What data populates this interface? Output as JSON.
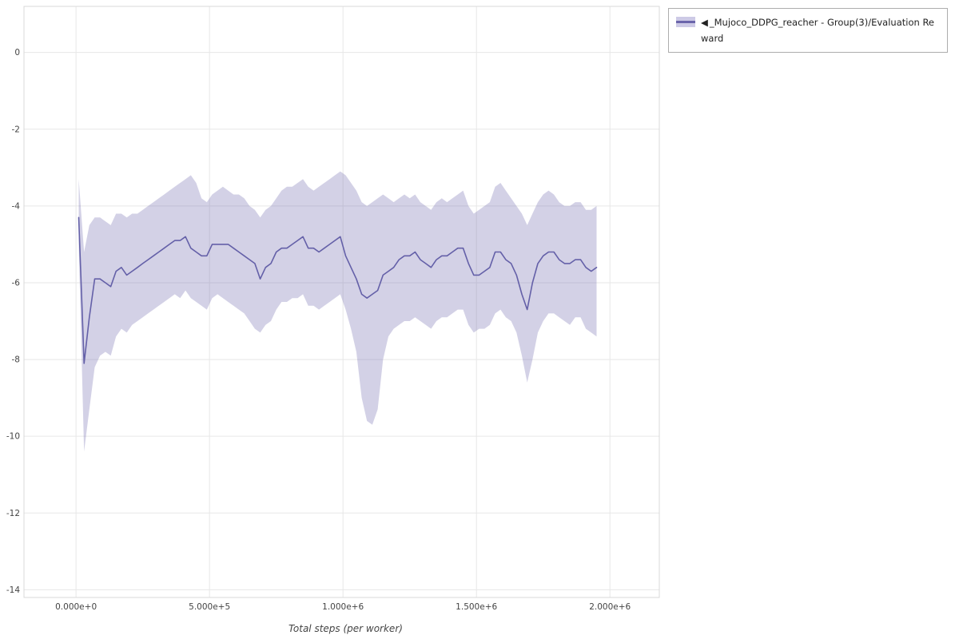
{
  "legend": {
    "collapse_icon": "◀",
    "series_label": "_Mujoco_DDPG_reacher - Group(3)/Evaluation Reward"
  },
  "colors": {
    "line": "#6460a8",
    "band": "#6c67ad",
    "band_opacity": 0.3,
    "grid": "#e7e7e7",
    "frame": "#d9d9d9",
    "tick_text": "#444444",
    "axis_label_text": "#444444"
  },
  "chart_data": {
    "type": "line",
    "title": "_Mujoco_DDPG_reacher - Group(3)/Evaluation Reward",
    "xlabel": "Total steps (per worker)",
    "ylabel": "",
    "grid": true,
    "legend_position": "top-right",
    "xlim": [
      -195000,
      2185000
    ],
    "ylim": [
      -14.2,
      1.2
    ],
    "x_ticks": {
      "values": [
        0,
        500000,
        1000000,
        1500000,
        2000000
      ],
      "labels": [
        "0.000e+0",
        "5.000e+5",
        "1.000e+6",
        "1.500e+6",
        "2.000e+6"
      ]
    },
    "y_ticks": {
      "values": [
        0,
        -2,
        -4,
        -6,
        -8,
        -10,
        -12,
        -14
      ],
      "labels": [
        "0",
        "-2",
        "-4",
        "-6",
        "-8",
        "-10",
        "-12",
        "-14"
      ]
    },
    "series": [
      {
        "name": "_Mujoco_DDPG_reacher - Group(3)/Evaluation Reward",
        "x": [
          10000,
          30000,
          50000,
          70000,
          90000,
          110000,
          130000,
          150000,
          170000,
          190000,
          210000,
          230000,
          250000,
          270000,
          290000,
          310000,
          330000,
          350000,
          370000,
          390000,
          410000,
          430000,
          450000,
          470000,
          490000,
          510000,
          530000,
          550000,
          570000,
          590000,
          610000,
          630000,
          650000,
          670000,
          690000,
          710000,
          730000,
          750000,
          770000,
          790000,
          810000,
          830000,
          850000,
          870000,
          890000,
          910000,
          930000,
          950000,
          970000,
          990000,
          1010000,
          1030000,
          1050000,
          1070000,
          1090000,
          1110000,
          1130000,
          1150000,
          1170000,
          1190000,
          1210000,
          1230000,
          1250000,
          1270000,
          1290000,
          1310000,
          1330000,
          1350000,
          1370000,
          1390000,
          1410000,
          1430000,
          1450000,
          1470000,
          1490000,
          1510000,
          1530000,
          1550000,
          1570000,
          1590000,
          1610000,
          1630000,
          1650000,
          1670000,
          1690000,
          1710000,
          1730000,
          1750000,
          1770000,
          1790000,
          1810000,
          1830000,
          1850000,
          1870000,
          1890000,
          1910000,
          1930000,
          1950000
        ],
        "mean": [
          -4.3,
          -8.1,
          -6.9,
          -5.9,
          -5.9,
          -6.0,
          -6.1,
          -5.7,
          -5.6,
          -5.8,
          -5.7,
          -5.6,
          -5.5,
          -5.4,
          -5.3,
          -5.2,
          -5.1,
          -5.0,
          -4.9,
          -4.9,
          -4.8,
          -5.1,
          -5.2,
          -5.3,
          -5.3,
          -5.0,
          -5.0,
          -5.0,
          -5.0,
          -5.1,
          -5.2,
          -5.3,
          -5.4,
          -5.5,
          -5.9,
          -5.6,
          -5.5,
          -5.2,
          -5.1,
          -5.1,
          -5.0,
          -4.9,
          -4.8,
          -5.1,
          -5.1,
          -5.2,
          -5.1,
          -5.0,
          -4.9,
          -4.8,
          -5.3,
          -5.6,
          -5.9,
          -6.3,
          -6.4,
          -6.3,
          -6.2,
          -5.8,
          -5.7,
          -5.6,
          -5.4,
          -5.3,
          -5.3,
          -5.2,
          -5.4,
          -5.5,
          -5.6,
          -5.4,
          -5.3,
          -5.3,
          -5.2,
          -5.1,
          -5.1,
          -5.5,
          -5.8,
          -5.8,
          -5.7,
          -5.6,
          -5.2,
          -5.2,
          -5.4,
          -5.5,
          -5.8,
          -6.3,
          -6.7,
          -6.0,
          -5.5,
          -5.3,
          -5.2,
          -5.2,
          -5.4,
          -5.5,
          -5.5,
          -5.4,
          -5.4,
          -5.6,
          -5.7,
          -5.6
        ],
        "upper": [
          -3.3,
          -5.2,
          -4.5,
          -4.3,
          -4.3,
          -4.4,
          -4.5,
          -4.2,
          -4.2,
          -4.3,
          -4.2,
          -4.2,
          -4.1,
          -4.0,
          -3.9,
          -3.8,
          -3.7,
          -3.6,
          -3.5,
          -3.4,
          -3.3,
          -3.2,
          -3.4,
          -3.8,
          -3.9,
          -3.7,
          -3.6,
          -3.5,
          -3.6,
          -3.7,
          -3.7,
          -3.8,
          -4.0,
          -4.1,
          -4.3,
          -4.1,
          -4.0,
          -3.8,
          -3.6,
          -3.5,
          -3.5,
          -3.4,
          -3.3,
          -3.5,
          -3.6,
          -3.5,
          -3.4,
          -3.3,
          -3.2,
          -3.1,
          -3.2,
          -3.4,
          -3.6,
          -3.9,
          -4.0,
          -3.9,
          -3.8,
          -3.7,
          -3.8,
          -3.9,
          -3.8,
          -3.7,
          -3.8,
          -3.7,
          -3.9,
          -4.0,
          -4.1,
          -3.9,
          -3.8,
          -3.9,
          -3.8,
          -3.7,
          -3.6,
          -4.0,
          -4.2,
          -4.1,
          -4.0,
          -3.9,
          -3.5,
          -3.4,
          -3.6,
          -3.8,
          -4.0,
          -4.2,
          -4.5,
          -4.2,
          -3.9,
          -3.7,
          -3.6,
          -3.7,
          -3.9,
          -4.0,
          -4.0,
          -3.9,
          -3.9,
          -4.1,
          -4.1,
          -4.0
        ],
        "lower": [
          -5.0,
          -10.4,
          -9.3,
          -8.2,
          -7.9,
          -7.8,
          -7.9,
          -7.4,
          -7.2,
          -7.3,
          -7.1,
          -7.0,
          -6.9,
          -6.8,
          -6.7,
          -6.6,
          -6.5,
          -6.4,
          -6.3,
          -6.4,
          -6.2,
          -6.4,
          -6.5,
          -6.6,
          -6.7,
          -6.4,
          -6.3,
          -6.4,
          -6.5,
          -6.6,
          -6.7,
          -6.8,
          -7.0,
          -7.2,
          -7.3,
          -7.1,
          -7.0,
          -6.7,
          -6.5,
          -6.5,
          -6.4,
          -6.4,
          -6.3,
          -6.6,
          -6.6,
          -6.7,
          -6.6,
          -6.5,
          -6.4,
          -6.3,
          -6.7,
          -7.2,
          -7.8,
          -9.0,
          -9.6,
          -9.7,
          -9.3,
          -8.0,
          -7.4,
          -7.2,
          -7.1,
          -7.0,
          -7.0,
          -6.9,
          -7.0,
          -7.1,
          -7.2,
          -7.0,
          -6.9,
          -6.9,
          -6.8,
          -6.7,
          -6.7,
          -7.1,
          -7.3,
          -7.2,
          -7.2,
          -7.1,
          -6.8,
          -6.7,
          -6.9,
          -7.0,
          -7.3,
          -7.9,
          -8.6,
          -8.0,
          -7.3,
          -7.0,
          -6.8,
          -6.8,
          -6.9,
          -7.0,
          -7.1,
          -6.9,
          -6.9,
          -7.2,
          -7.3,
          -7.4
        ]
      }
    ]
  }
}
